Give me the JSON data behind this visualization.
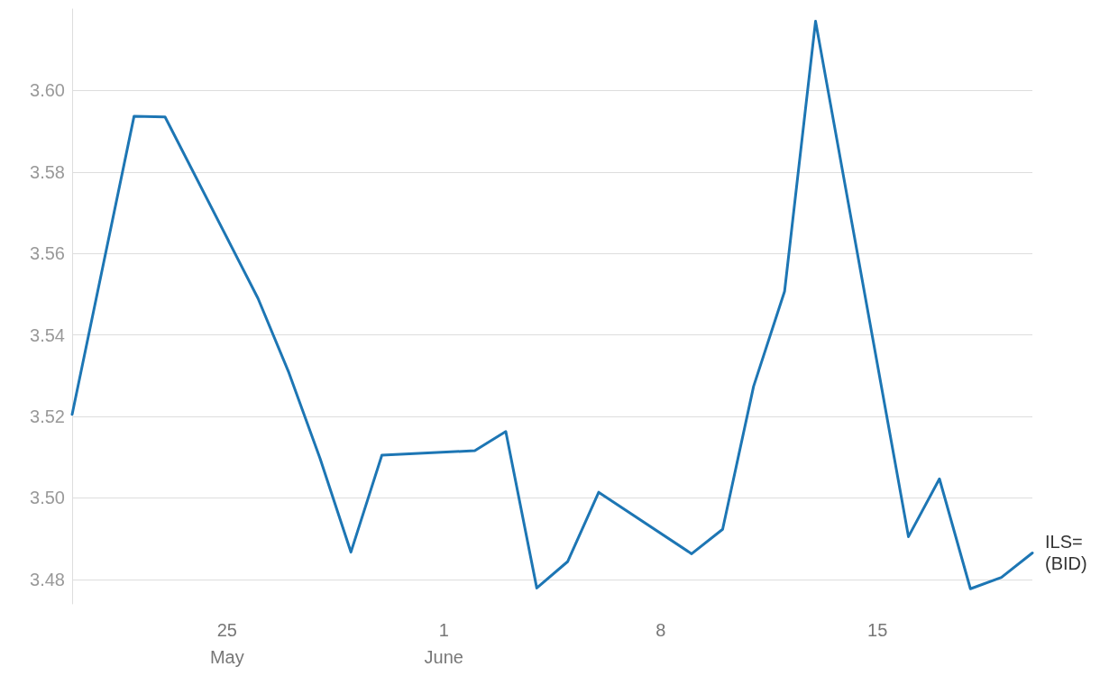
{
  "chart_data": {
    "type": "line",
    "x": [
      "--05-20",
      "--05-22",
      "--05-23",
      "--05-26",
      "--05-27",
      "--05-28",
      "--05-29",
      "--05-30",
      "--06-02",
      "--06-03",
      "--06-04",
      "--06-05",
      "--06-06",
      "--06-09",
      "--06-10",
      "--06-11",
      "--06-12",
      "--06-13",
      "--06-16",
      "--06-17",
      "--06-18",
      "--06-19",
      "--06-20"
    ],
    "series": [
      {
        "name": "ILS=\n(BID)",
        "color": "#1d76b4",
        "values": [
          3.5205,
          3.5937,
          3.5935,
          3.549,
          3.5307,
          3.5098,
          3.4867,
          3.5105,
          3.5116,
          3.5163,
          3.4779,
          3.4844,
          3.5014,
          3.4863,
          3.4923,
          3.5274,
          3.5507,
          3.617,
          3.4905,
          3.5047,
          3.4777,
          3.4805,
          3.4865
        ]
      }
    ],
    "xlim": [
      "--05-20",
      "--06-20"
    ],
    "xticks": [
      {
        "value": "--05-25",
        "label": "25\nMay"
      },
      {
        "value": "--06-01",
        "label": "1\nJune"
      },
      {
        "value": "--06-08",
        "label": "8"
      },
      {
        "value": "--06-15",
        "label": "15"
      }
    ],
    "ylim": [
      3.474,
      3.62
    ],
    "yticks": [
      {
        "value": 3.48,
        "label": "3.48"
      },
      {
        "value": 3.5,
        "label": "3.50"
      },
      {
        "value": 3.52,
        "label": "3.52"
      },
      {
        "value": 3.54,
        "label": "3.54"
      },
      {
        "value": 3.56,
        "label": "3.56"
      },
      {
        "value": 3.58,
        "label": "3.58"
      },
      {
        "value": 3.6,
        "label": "3.60"
      }
    ],
    "grid": "y",
    "marker": "none",
    "line_style": "solid",
    "legend": false
  }
}
